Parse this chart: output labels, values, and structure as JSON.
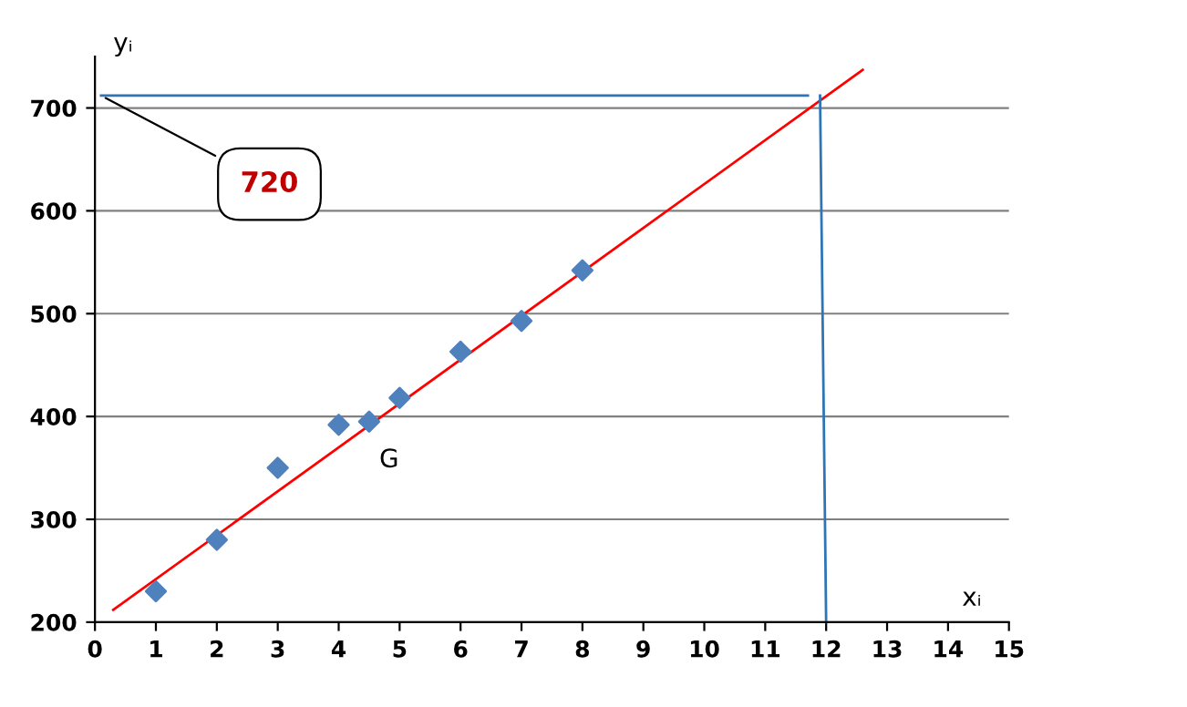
{
  "chart_data": {
    "type": "scatter",
    "xlabel": "xᵢ",
    "ylabel": "yᵢ",
    "xlim": [
      0,
      15
    ],
    "ylim": [
      200,
      750
    ],
    "xticks": [
      0,
      1,
      2,
      3,
      4,
      5,
      6,
      7,
      8,
      9,
      10,
      11,
      12,
      13,
      14,
      15
    ],
    "yticks": [
      200,
      300,
      400,
      500,
      600,
      700
    ],
    "grid": "y",
    "series": [
      {
        "marker": "diamond",
        "color": "#4f81bd",
        "x": [
          1,
          2,
          3,
          4,
          4.5,
          5,
          6,
          7,
          8
        ],
        "values": [
          230,
          280,
          350,
          392,
          395,
          418,
          463,
          493,
          542
        ]
      },
      {
        "type": "line",
        "color": "#ff0000",
        "x": [
          0.3,
          12.6
        ],
        "values": [
          212,
          737
        ],
        "marker": "none"
      },
      {
        "type": "line",
        "color": "#2e75b6",
        "x": [
          12,
          11.9
        ],
        "values": [
          200,
          712
        ],
        "marker": "none"
      },
      {
        "type": "line",
        "color": "#2e75b6",
        "x": [
          11.7,
          0.1
        ],
        "values": [
          712,
          712
        ],
        "marker": "none"
      }
    ],
    "annotations": [
      {
        "text": "G",
        "x": 4.5,
        "y": 395
      },
      {
        "text": "720",
        "x": 0.1,
        "y": 712
      }
    ]
  }
}
